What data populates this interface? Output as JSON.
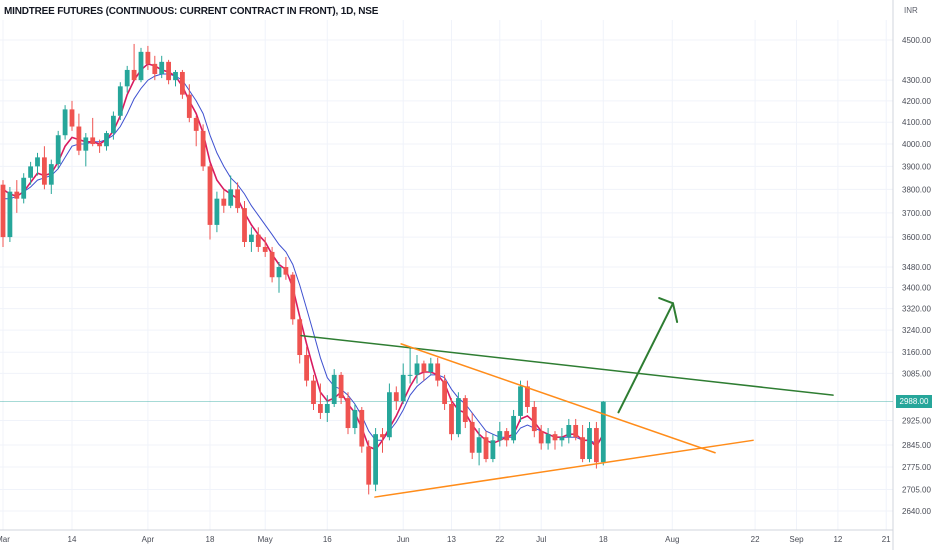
{
  "title": "MINDTREE FUTURES (CONTINUOUS: CURRENT CONTRACT IN FRONT), 1D, NSE",
  "currency": "INR",
  "colors": {
    "up": "#26a69a",
    "down": "#ef5350",
    "ma_fast": "#d81b60",
    "ma_slow": "#3f51d0",
    "trendline_green": "#2e7d32",
    "triangle": "#ff8c1a",
    "arrow": "#2e7d32",
    "price_line": "#26a69a"
  },
  "chart_data": {
    "type": "candlestick",
    "y_scale": "log",
    "ylim": [
      2620,
      4600
    ],
    "y_ticks": [
      {
        "value": 4500,
        "label": "4500.00"
      },
      {
        "value": 4300,
        "label": "4300.00"
      },
      {
        "value": 4200,
        "label": "4200.00"
      },
      {
        "value": 4100,
        "label": "4100.00"
      },
      {
        "value": 4000,
        "label": "4000.00"
      },
      {
        "value": 3900,
        "label": "3900.00"
      },
      {
        "value": 3800,
        "label": "3800.00"
      },
      {
        "value": 3700,
        "label": "3700.00"
      },
      {
        "value": 3600,
        "label": "3600.00"
      },
      {
        "value": 3480,
        "label": "3480.00"
      },
      {
        "value": 3400,
        "label": "3400.00"
      },
      {
        "value": 3320,
        "label": "3320.00"
      },
      {
        "value": 3240,
        "label": "3240.00"
      },
      {
        "value": 3160,
        "label": "3160.00"
      },
      {
        "value": 3085,
        "label": "3085.00"
      },
      {
        "value": 2925,
        "label": "2925.00"
      },
      {
        "value": 2845,
        "label": "2845.00"
      },
      {
        "value": 2775,
        "label": "2775.00"
      },
      {
        "value": 2705,
        "label": "2705.00"
      },
      {
        "value": 2640,
        "label": "2640.00"
      }
    ],
    "x_ticks": [
      {
        "index": 0,
        "label": "Mar"
      },
      {
        "index": 10,
        "label": "14"
      },
      {
        "index": 21,
        "label": "Apr"
      },
      {
        "index": 30,
        "label": "18"
      },
      {
        "index": 38,
        "label": "May"
      },
      {
        "index": 47,
        "label": "16"
      },
      {
        "index": 58,
        "label": "Jun"
      },
      {
        "index": 65,
        "label": "13"
      },
      {
        "index": 72,
        "label": "22"
      },
      {
        "index": 78,
        "label": "Jul"
      },
      {
        "index": 87,
        "label": "18"
      },
      {
        "index": 97,
        "label": "Aug"
      },
      {
        "index": 109,
        "label": "22"
      },
      {
        "index": 115,
        "label": "Sep"
      },
      {
        "index": 121,
        "label": "12"
      },
      {
        "index": 128,
        "label": "21"
      }
    ],
    "last_price": 2988,
    "last_price_label": "2988.00",
    "candles": [
      [
        3820,
        3840,
        3560,
        3600
      ],
      [
        3600,
        3810,
        3580,
        3790
      ],
      [
        3790,
        3840,
        3700,
        3760
      ],
      [
        3760,
        3870,
        3740,
        3850
      ],
      [
        3850,
        3920,
        3820,
        3900
      ],
      [
        3900,
        3960,
        3860,
        3940
      ],
      [
        3940,
        3990,
        3800,
        3820
      ],
      [
        3820,
        3930,
        3780,
        3910
      ],
      [
        3910,
        4060,
        3890,
        4040
      ],
      [
        4040,
        4180,
        4020,
        4160
      ],
      [
        4160,
        4200,
        4060,
        4080
      ],
      [
        4080,
        4140,
        3950,
        3970
      ],
      [
        3970,
        4050,
        3900,
        4030
      ],
      [
        4030,
        4120,
        3990,
        4000
      ],
      [
        4000,
        4020,
        3960,
        3990
      ],
      [
        3990,
        4060,
        3970,
        4050
      ],
      [
        4050,
        4150,
        4020,
        4130
      ],
      [
        4130,
        4290,
        4110,
        4270
      ],
      [
        4270,
        4370,
        4240,
        4350
      ],
      [
        4350,
        4480,
        4310,
        4300
      ],
      [
        4300,
        4460,
        4290,
        4440
      ],
      [
        4440,
        4470,
        4350,
        4380
      ],
      [
        4380,
        4420,
        4300,
        4330
      ],
      [
        4330,
        4420,
        4310,
        4390
      ],
      [
        4390,
        4400,
        4280,
        4300
      ],
      [
        4300,
        4350,
        4270,
        4340
      ],
      [
        4340,
        4350,
        4210,
        4230
      ],
      [
        4230,
        4280,
        4100,
        4120
      ],
      [
        4120,
        4130,
        3990,
        4060
      ],
      [
        4060,
        4090,
        3880,
        3900
      ],
      [
        3900,
        3910,
        3590,
        3650
      ],
      [
        3650,
        3790,
        3620,
        3760
      ],
      [
        3760,
        3800,
        3700,
        3730
      ],
      [
        3730,
        3860,
        3720,
        3800
      ],
      [
        3800,
        3830,
        3700,
        3720
      ],
      [
        3720,
        3750,
        3560,
        3580
      ],
      [
        3580,
        3640,
        3540,
        3610
      ],
      [
        3610,
        3640,
        3540,
        3560
      ],
      [
        3560,
        3600,
        3520,
        3540
      ],
      [
        3540,
        3560,
        3420,
        3440
      ],
      [
        3440,
        3500,
        3380,
        3480
      ],
      [
        3480,
        3520,
        3430,
        3450
      ],
      [
        3450,
        3460,
        3260,
        3280
      ],
      [
        3280,
        3290,
        3120,
        3150
      ],
      [
        3150,
        3180,
        3040,
        3060
      ],
      [
        3060,
        3080,
        2960,
        2980
      ],
      [
        2980,
        3050,
        2930,
        2950
      ],
      [
        2950,
        3010,
        2920,
        2980
      ],
      [
        2980,
        3100,
        2970,
        3080
      ],
      [
        3080,
        3090,
        2980,
        3000
      ],
      [
        3000,
        3020,
        2880,
        2900
      ],
      [
        2900,
        2980,
        2880,
        2960
      ],
      [
        2960,
        2970,
        2820,
        2840
      ],
      [
        2840,
        2860,
        2690,
        2720
      ],
      [
        2720,
        2900,
        2700,
        2880
      ],
      [
        2880,
        2900,
        2820,
        2870
      ],
      [
        2870,
        3050,
        2860,
        3020
      ],
      [
        3020,
        3040,
        2960,
        2990
      ],
      [
        2990,
        3120,
        2980,
        3080
      ],
      [
        3080,
        3180,
        3050,
        3080
      ],
      [
        3080,
        3150,
        3050,
        3120
      ],
      [
        3120,
        3130,
        3060,
        3090
      ],
      [
        3090,
        3140,
        3080,
        3120
      ],
      [
        3120,
        3140,
        3040,
        3060
      ],
      [
        3060,
        3080,
        2960,
        2980
      ],
      [
        2980,
        3000,
        2860,
        2880
      ],
      [
        2880,
        3020,
        2870,
        3000
      ],
      [
        3000,
        3010,
        2900,
        2920
      ],
      [
        2920,
        2950,
        2800,
        2820
      ],
      [
        2820,
        2900,
        2780,
        2870
      ],
      [
        2870,
        2890,
        2790,
        2800
      ],
      [
        2800,
        2880,
        2790,
        2860
      ],
      [
        2860,
        2920,
        2840,
        2890
      ],
      [
        2890,
        2900,
        2840,
        2860
      ],
      [
        2860,
        2960,
        2850,
        2940
      ],
      [
        2940,
        3060,
        2920,
        3040
      ],
      [
        3040,
        3060,
        2950,
        2970
      ],
      [
        2970,
        2990,
        2870,
        2890
      ],
      [
        2890,
        2910,
        2830,
        2850
      ],
      [
        2850,
        2900,
        2830,
        2880
      ],
      [
        2880,
        2890,
        2830,
        2860
      ],
      [
        2860,
        2900,
        2840,
        2870
      ],
      [
        2870,
        2930,
        2850,
        2910
      ],
      [
        2910,
        2930,
        2860,
        2870
      ],
      [
        2870,
        2910,
        2790,
        2800
      ],
      [
        2800,
        2920,
        2790,
        2900
      ],
      [
        2900,
        2920,
        2770,
        2790
      ],
      [
        2790,
        2990,
        2780,
        2988
      ]
    ],
    "ma_fast": [
      3800,
      3780,
      3770,
      3790,
      3830,
      3870,
      3860,
      3870,
      3920,
      3990,
      4030,
      4020,
      4010,
      4010,
      4000,
      4020,
      4060,
      4130,
      4230,
      4300,
      4350,
      4380,
      4370,
      4350,
      4340,
      4320,
      4270,
      4200,
      4140,
      4050,
      3920,
      3840,
      3800,
      3780,
      3760,
      3700,
      3650,
      3610,
      3580,
      3530,
      3490,
      3470,
      3400,
      3290,
      3190,
      3100,
      3020,
      2990,
      3000,
      3020,
      2980,
      2950,
      2900,
      2840,
      2830,
      2860,
      2900,
      2940,
      2990,
      3040,
      3080,
      3090,
      3090,
      3080,
      3050,
      2990,
      2960,
      2950,
      2910,
      2880,
      2860,
      2850,
      2860,
      2870,
      2880,
      2930,
      2940,
      2920,
      2890,
      2880,
      2870,
      2870,
      2880,
      2880,
      2860,
      2860,
      2840,
      2880
    ],
    "ma_slow": [
      3760,
      3760,
      3770,
      3790,
      3810,
      3840,
      3850,
      3860,
      3890,
      3940,
      3990,
      4000,
      4000,
      4010,
      4010,
      4020,
      4040,
      4080,
      4140,
      4210,
      4260,
      4300,
      4320,
      4330,
      4330,
      4320,
      4300,
      4250,
      4200,
      4140,
      4040,
      3960,
      3900,
      3850,
      3820,
      3780,
      3730,
      3690,
      3650,
      3610,
      3570,
      3540,
      3490,
      3410,
      3320,
      3230,
      3140,
      3070,
      3040,
      3030,
      3010,
      2980,
      2940,
      2890,
      2860,
      2860,
      2890,
      2920,
      2960,
      3010,
      3040,
      3060,
      3080,
      3080,
      3070,
      3030,
      3000,
      2980,
      2950,
      2920,
      2890,
      2880,
      2870,
      2870,
      2870,
      2900,
      2910,
      2900,
      2890,
      2880,
      2870,
      2870,
      2870,
      2870,
      2860,
      2860,
      2850,
      2870
    ]
  }
}
